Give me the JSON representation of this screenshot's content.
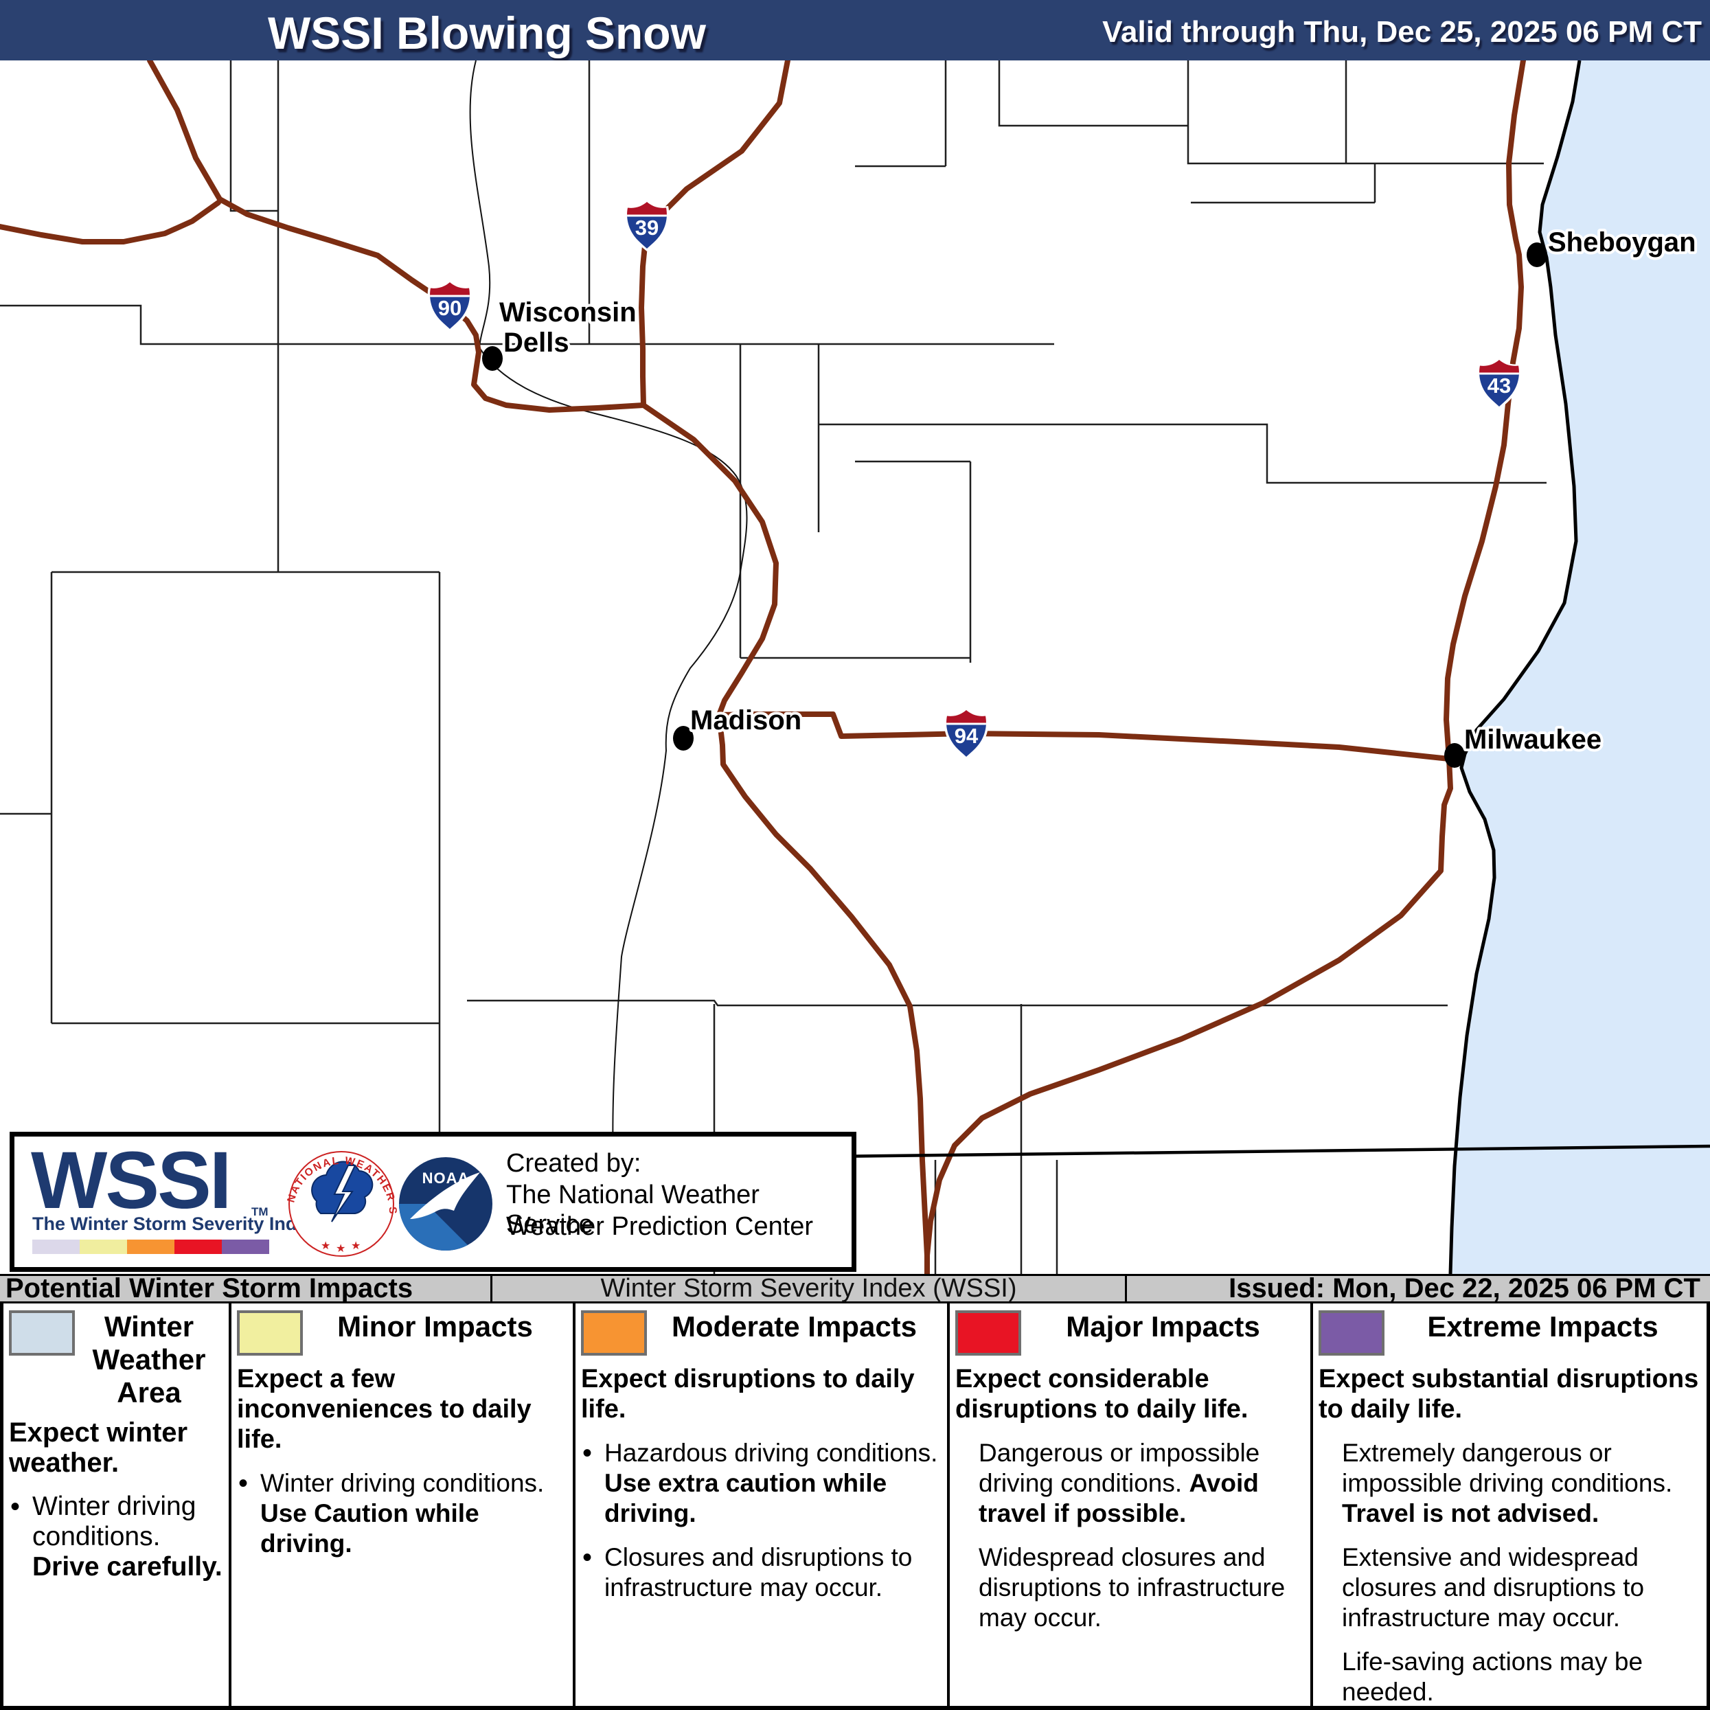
{
  "header": {
    "title": "WSSI Blowing Snow",
    "valid": "Valid through Thu, Dec 25, 2025 06 PM CT"
  },
  "map": {
    "cities": [
      {
        "id": "wisconsin-dells",
        "line1": "Wisconsin",
        "line2": "Dells"
      },
      {
        "id": "sheboygan",
        "name": "Sheboygan"
      },
      {
        "id": "madison",
        "name": "Madison"
      },
      {
        "id": "milwaukee",
        "name": "Milwaukee"
      }
    ],
    "interstates": [
      {
        "number": "39"
      },
      {
        "number": "90"
      },
      {
        "number": "43"
      },
      {
        "number": "94"
      }
    ],
    "colors": {
      "lake": "#d9e9fa",
      "highway": "#7c2d12",
      "county_line": "#1f1f1f",
      "coastline": "#000000",
      "shield_red": "#b01226",
      "shield_blue": "#1e3e93"
    }
  },
  "credit_box": {
    "logo": "WSSI",
    "tm": "TM",
    "tagline": "The Winter Storm Severity Index",
    "created_by": "Created by:",
    "org_line1": "The National Weather Service",
    "org_line2": "Weather Prediction Center",
    "nws_ring_text": "NATIONAL WEATHER SERVICE",
    "noaa_label": "NOAA",
    "strip_colors": [
      "#dcd8ea",
      "#f0ee9f",
      "#f79432",
      "#e81424",
      "#7b5ba6"
    ]
  },
  "status_bar": {
    "left": "Potential Winter Storm Impacts",
    "center": "Winter Storm Severity Index (WSSI)",
    "right": "Issued: Mon, Dec 22, 2025 06 PM CT"
  },
  "legend": {
    "columns": [
      {
        "title": "Winter Weather Area",
        "swatch": "#cfdde9",
        "lead": "Expect winter weather.",
        "items": [
          {
            "bullet": true,
            "parts": [
              {
                "text": "Winter driving conditions. ",
                "bold": false
              },
              {
                "text": "Drive carefully.",
                "bold": true
              }
            ]
          }
        ]
      },
      {
        "title": "Minor Impacts",
        "swatch": "#f1ef9f",
        "lead": "Expect a few inconveniences to daily life.",
        "items": [
          {
            "bullet": true,
            "parts": [
              {
                "text": "Winter driving conditions. ",
                "bold": false
              },
              {
                "text": "Use Caution while driving.",
                "bold": true
              }
            ]
          }
        ]
      },
      {
        "title": "Moderate Impacts",
        "swatch": "#f79432",
        "lead": "Expect disruptions to daily life.",
        "items": [
          {
            "bullet": true,
            "parts": [
              {
                "text": "Hazardous driving conditions. ",
                "bold": false
              },
              {
                "text": "Use extra caution while driving.",
                "bold": true
              }
            ]
          },
          {
            "bullet": true,
            "parts": [
              {
                "text": "Closures and disruptions to infrastructure may occur.",
                "bold": false
              }
            ]
          }
        ]
      },
      {
        "title": "Major Impacts",
        "swatch": "#e81424",
        "lead": "Expect considerable disruptions to daily life.",
        "items": [
          {
            "bullet": false,
            "parts": [
              {
                "text": "Dangerous or impossible driving conditions. ",
                "bold": false
              },
              {
                "text": "Avoid travel if possible.",
                "bold": true
              }
            ]
          },
          {
            "bullet": false,
            "parts": [
              {
                "text": "Widespread closures and disruptions to infrastructure may occur.",
                "bold": false
              }
            ]
          }
        ]
      },
      {
        "title": "Extreme Impacts",
        "swatch": "#7b5ba6",
        "lead": "Expect substantial disruptions to daily life.",
        "items": [
          {
            "bullet": false,
            "parts": [
              {
                "text": "Extremely dangerous or impossible driving conditions. ",
                "bold": false
              },
              {
                "text": "Travel is not advised.",
                "bold": true
              }
            ]
          },
          {
            "bullet": false,
            "parts": [
              {
                "text": "Extensive and widespread closures and disruptions to infrastructure may occur.",
                "bold": false
              }
            ]
          },
          {
            "bullet": false,
            "parts": [
              {
                "text": "Life-saving actions may be needed.",
                "bold": false
              }
            ]
          }
        ]
      }
    ]
  }
}
